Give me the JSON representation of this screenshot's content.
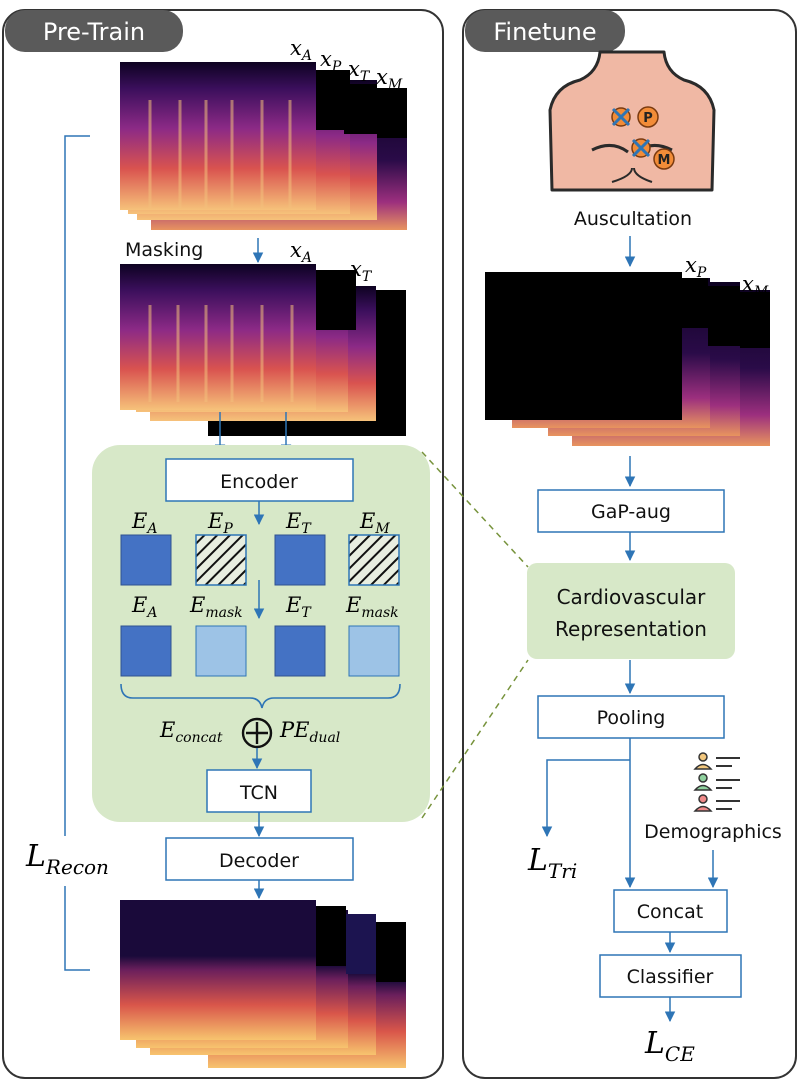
{
  "panels": {
    "pretrain_title": "Pre-Train",
    "finetune_title": "Finetune"
  },
  "pretrain": {
    "input_labels": {
      "A": "A",
      "P": "P",
      "T": "T",
      "M": "M"
    },
    "masking_label": "Masking",
    "masked_labels": {
      "A": "A",
      "T": "T"
    },
    "encoder_label": "Encoder",
    "embed_row1": {
      "e1": "A",
      "e2": "P",
      "e3": "T",
      "e4": "M"
    },
    "embed_row2": {
      "e1": "A",
      "e2": "mask",
      "e3": "T",
      "e4": "mask"
    },
    "concat_sub": "concat",
    "pe_sub": "dual",
    "oplus": "⊕",
    "tcn_label": "TCN",
    "decoder_label": "Decoder",
    "loss_sub": "Recon"
  },
  "finetune": {
    "site_p": "P",
    "site_m": "M",
    "auscultation_label": "Auscultation",
    "spec_labels": {
      "P": "P",
      "M": "M"
    },
    "gap_aug_label": "GaP-aug",
    "representation_line1": "Cardiovascular",
    "representation_line2": "Representation",
    "pooling_label": "Pooling",
    "demographics_label": "Demographics",
    "tri_sub": "Tri",
    "concat_label": "Concat",
    "classifier_label": "Classifier",
    "ce_sub": "CE"
  },
  "colors": {
    "panel_border": "#333333",
    "tab_fill": "#5a5a5a",
    "arrow": "#2e75b6",
    "box_border": "#2e75b6",
    "green_region": "#d7e8c8",
    "dark_blue": "#4472c4",
    "light_blue": "#9dc3e6",
    "skin": "#f0b8a4"
  }
}
